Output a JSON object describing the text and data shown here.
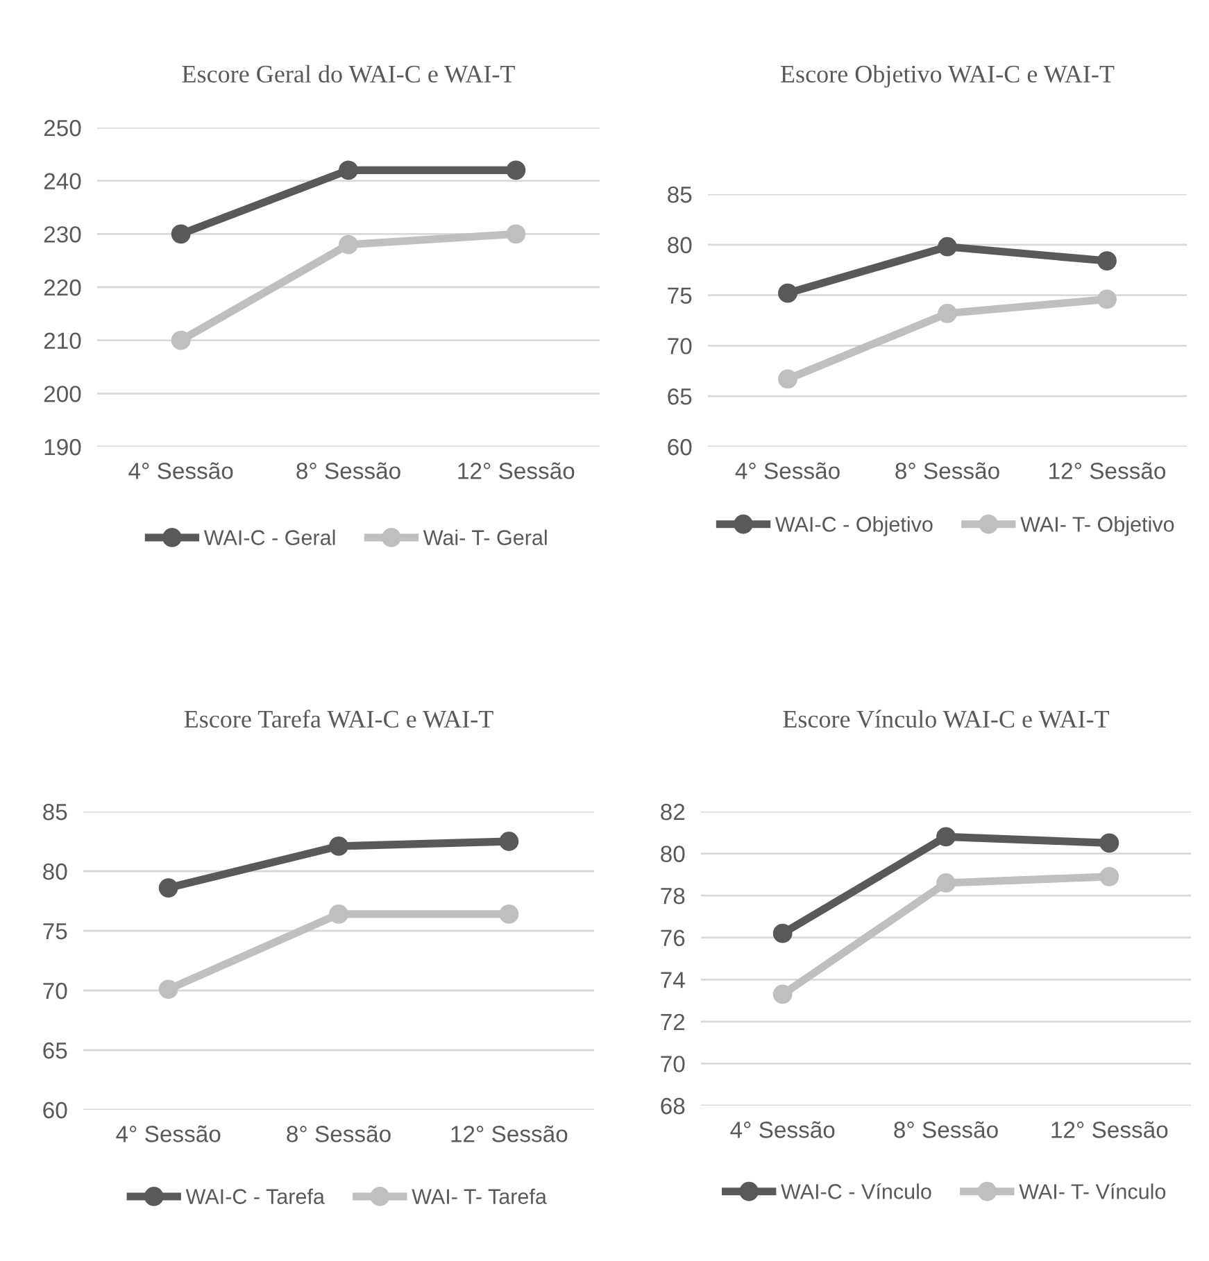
{
  "chart_data": [
    {
      "type": "line",
      "title": "Escore Geral do WAI-C e WAI-T",
      "categories": [
        "4° Sessão",
        "8° Sessão",
        "12° Sessão"
      ],
      "series": [
        {
          "name": "WAI-C - Geral",
          "color": "#595959",
          "values": [
            230,
            242,
            242
          ]
        },
        {
          "name": "Wai- T- Geral",
          "color": "#bfbfbf",
          "values": [
            210,
            228,
            230
          ]
        }
      ],
      "ylim": [
        190,
        250
      ],
      "yticks": [
        190,
        200,
        210,
        220,
        230,
        240,
        250
      ],
      "grid": "y",
      "legend": "bottom",
      "marker": "circle",
      "line_style": "solid"
    },
    {
      "type": "line",
      "title": "Escore Objetivo WAI-C e WAI-T",
      "categories": [
        "4° Sessão",
        "8° Sessão",
        "12° Sessão"
      ],
      "series": [
        {
          "name": "WAI-C - Objetivo",
          "color": "#595959",
          "values": [
            75.2,
            79.8,
            78.4
          ]
        },
        {
          "name": "WAI- T- Objetivo",
          "color": "#bfbfbf",
          "values": [
            66.7,
            73.2,
            74.6
          ]
        }
      ],
      "ylim": [
        60,
        85
      ],
      "yticks": [
        60,
        65,
        70,
        75,
        80,
        85
      ],
      "grid": "y",
      "legend": "bottom",
      "marker": "circle",
      "line_style": "solid"
    },
    {
      "type": "line",
      "title": "Escore Tarefa WAI-C e WAI-T",
      "categories": [
        "4° Sessão",
        "8° Sessão",
        "12° Sessão"
      ],
      "series": [
        {
          "name": "WAI-C - Tarefa",
          "color": "#595959",
          "values": [
            78.6,
            82.1,
            82.5
          ]
        },
        {
          "name": "WAI- T- Tarefa",
          "color": "#bfbfbf",
          "values": [
            70.1,
            76.4,
            76.4
          ]
        }
      ],
      "ylim": [
        60,
        85
      ],
      "yticks": [
        60,
        65,
        70,
        75,
        80,
        85
      ],
      "grid": "y",
      "legend": "bottom",
      "marker": "circle",
      "line_style": "solid"
    },
    {
      "type": "line",
      "title": "Escore Vínculo WAI-C e WAI-T",
      "categories": [
        "4° Sessão",
        "8° Sessão",
        "12° Sessão"
      ],
      "series": [
        {
          "name": "WAI-C - Vínculo",
          "color": "#595959",
          "values": [
            76.2,
            80.8,
            80.5
          ]
        },
        {
          "name": "WAI- T- Vínculo",
          "color": "#bfbfbf",
          "values": [
            73.3,
            78.6,
            78.9
          ]
        }
      ],
      "ylim": [
        68,
        82
      ],
      "yticks": [
        68,
        70,
        72,
        74,
        76,
        78,
        80,
        82
      ],
      "grid": "y",
      "legend": "bottom",
      "marker": "circle",
      "line_style": "solid"
    }
  ]
}
